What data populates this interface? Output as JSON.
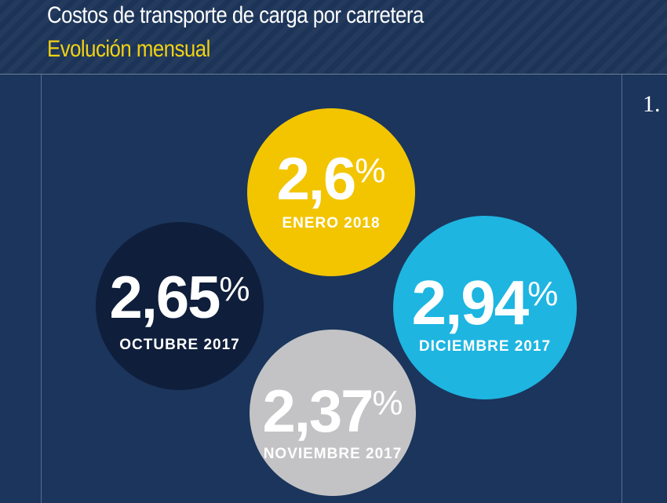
{
  "header": {
    "title": "Costos de transporte de carga por carretera",
    "subtitle": "Evolución mensual"
  },
  "side_label": "1.",
  "colors": {
    "background": "#1b355c",
    "subtitle": "#f2d212",
    "enero": "#f2c500",
    "diciembre": "#1eb5e1",
    "noviembre": "#c3c3c5",
    "octubre": "#0f1e3b"
  },
  "chart_data": {
    "type": "bubble",
    "title": "Costos de transporte de carga por carretera",
    "subtitle": "Evolución mensual",
    "unit": "%",
    "series": [
      {
        "period": "ENERO 2018",
        "value": 2.6,
        "display": "2,6",
        "color": "#f2c500"
      },
      {
        "period": "DICIEMBRE 2017",
        "value": 2.94,
        "display": "2,94",
        "color": "#1eb5e1"
      },
      {
        "period": "NOVIEMBRE 2017",
        "value": 2.37,
        "display": "2,37",
        "color": "#c3c3c5"
      },
      {
        "period": "OCTUBRE 2017",
        "value": 2.65,
        "display": "2,65",
        "color": "#0f1e3b"
      }
    ]
  }
}
